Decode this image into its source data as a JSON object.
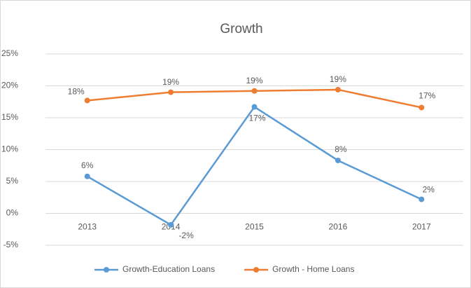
{
  "chart_data": {
    "type": "line",
    "title": "Growth",
    "categories": [
      "2013",
      "2014",
      "2015",
      "2016",
      "2017"
    ],
    "series": [
      {
        "name": "Growth-Education Loans",
        "color": "#5b9bd5",
        "values": [
          5.8,
          -1.8,
          16.7,
          8.3,
          2.2
        ],
        "value_labels": [
          "6%",
          "-2%",
          "17%",
          "8%",
          "2%"
        ]
      },
      {
        "name": "Growth - Home Loans",
        "color": "#ed7d31",
        "values": [
          17.7,
          19.0,
          19.2,
          19.4,
          16.6
        ],
        "value_labels": [
          "18%",
          "19%",
          "19%",
          "19%",
          "17%"
        ]
      }
    ],
    "ylim": [
      -5,
      25
    ],
    "yticks": [
      {
        "value": -5,
        "label": "-5%"
      },
      {
        "value": 0,
        "label": "0%"
      },
      {
        "value": 5,
        "label": "5%"
      },
      {
        "value": 10,
        "label": "10%"
      },
      {
        "value": 15,
        "label": "15%"
      },
      {
        "value": 20,
        "label": "20%"
      },
      {
        "value": 25,
        "label": "25%"
      }
    ],
    "grid": true,
    "legend": "bottom"
  }
}
